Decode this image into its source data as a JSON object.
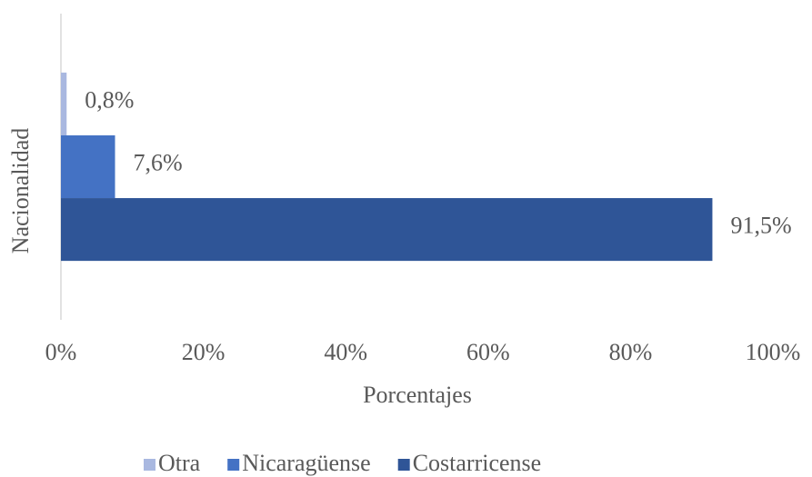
{
  "chart_data": {
    "type": "hbar",
    "x_label": "Porcentajes",
    "y_label": "Nacionalidad",
    "categories": [
      null
    ],
    "series": [
      {
        "name": "Otra",
        "color": "#a9b8e0",
        "values": [
          0.8
        ],
        "value_labels": [
          "0,8%"
        ]
      },
      {
        "name": "Nicaragüense",
        "color": "#4472c4",
        "values": [
          7.6
        ],
        "value_labels": [
          "7,6%"
        ]
      },
      {
        "name": "Costarricense",
        "color": "#2f5597",
        "values": [
          91.5
        ],
        "value_labels": [
          "91,5%"
        ]
      }
    ],
    "xlim": [
      0,
      100
    ],
    "xticks": [
      {
        "value": 0,
        "label": "0%"
      },
      {
        "value": 20,
        "label": "20%"
      },
      {
        "value": 40,
        "label": "40%"
      },
      {
        "value": 60,
        "label": "60%"
      },
      {
        "value": 80,
        "label": "80%"
      },
      {
        "value": 100,
        "label": "100%"
      }
    ],
    "grid": false,
    "legend": "bottom"
  }
}
